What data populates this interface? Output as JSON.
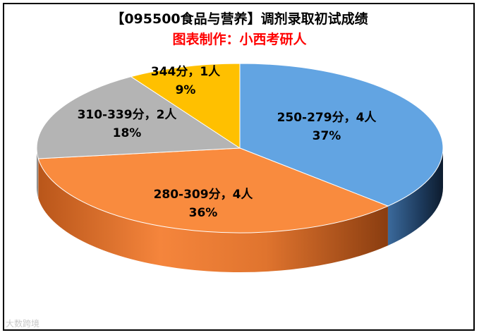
{
  "chart_data": {
    "type": "pie",
    "title": "【095500食品与营养】调剂录取初试成绩",
    "subtitle": "图表制作：小西考研人",
    "slices": [
      {
        "label": "250-279分，4人",
        "percent_label": "37%",
        "value": 37,
        "color": "#62a4e2",
        "side": "#254d78"
      },
      {
        "label": "280-309分，4人",
        "percent_label": "36%",
        "value": 36,
        "color": "#f98b3e",
        "side": "#c15a1a"
      },
      {
        "label": "310-339分，2人",
        "percent_label": "18%",
        "value": 18,
        "color": "#b4b4b4",
        "side": "#7a7a7a"
      },
      {
        "label": "344分，1人",
        "percent_label": "9%",
        "value": 9,
        "color": "#ffc000",
        "side": "#b88900"
      }
    ],
    "watermark": "大数跨境"
  }
}
